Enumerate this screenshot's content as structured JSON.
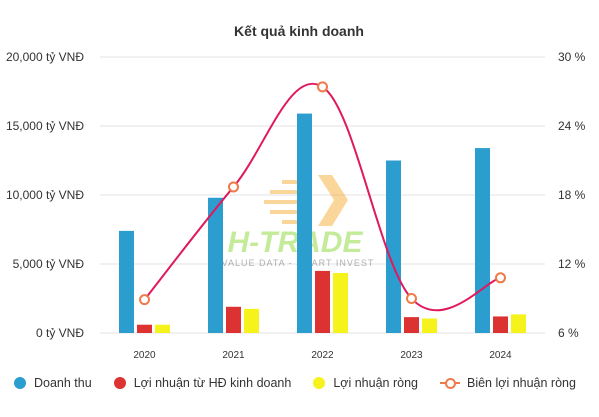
{
  "chart_data": {
    "type": "bar",
    "title": "Kết quả kinh doanh",
    "categories": [
      "2020",
      "2021",
      "2022",
      "2023",
      "2024"
    ],
    "y_left": {
      "ticks": [
        "0 tỷ VNĐ",
        "5,000 tỷ VNĐ",
        "10,000 tỷ VNĐ",
        "15,000 tỷ VNĐ",
        "20,000 tỷ VNĐ"
      ],
      "range": [
        0,
        20000
      ]
    },
    "y_right": {
      "ticks": [
        "6 %",
        "12 %",
        "18 %",
        "24 %",
        "30 %"
      ],
      "range": [
        6,
        30
      ]
    },
    "grid": "horizontal",
    "legend_position": "bottom",
    "series": [
      {
        "name": "Doanh thu",
        "type": "bar",
        "axis": "left",
        "color": "#2b9ecf",
        "values": [
          7400,
          9800,
          15900,
          12500,
          13400
        ]
      },
      {
        "name": "Lợi nhuận từ HĐ kinh doanh",
        "type": "bar",
        "axis": "left",
        "color": "#dc3232",
        "values": [
          600,
          1900,
          4500,
          1150,
          1200
        ]
      },
      {
        "name": "Lợi nhuận ròng",
        "type": "bar",
        "axis": "left",
        "color": "#f5f21c",
        "values": [
          600,
          1750,
          4350,
          1050,
          1350
        ]
      },
      {
        "name": "Biên lợi nhuận ròng",
        "type": "line",
        "axis": "right",
        "color": "#e0195f",
        "marker_color": "#f07a4a",
        "values": [
          8.9,
          18.7,
          27.4,
          9.0,
          10.8
        ]
      }
    ]
  },
  "watermark": {
    "brand": "H-TRADE",
    "tagline": "VALUE DATA - SMART INVEST"
  }
}
